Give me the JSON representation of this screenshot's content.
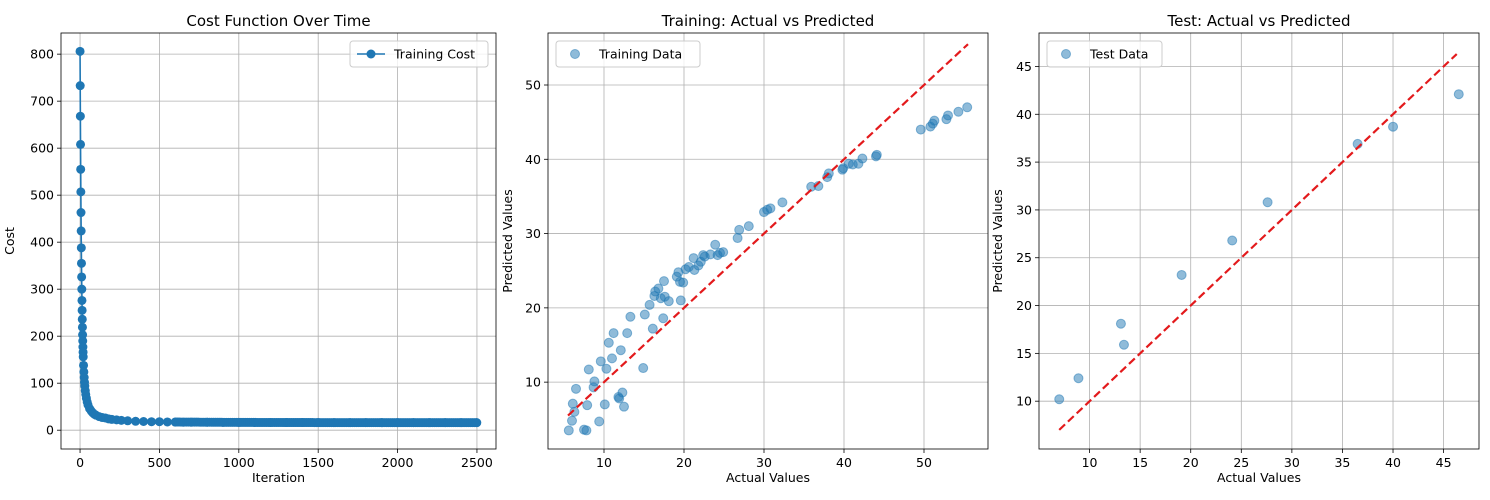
{
  "chart_data": [
    {
      "type": "line",
      "title": "Cost Function Over Time",
      "xlabel": "Iteration",
      "ylabel": "Cost",
      "xlim": [
        -120,
        2620
      ],
      "ylim": [
        -40,
        845
      ],
      "xticks": [
        0,
        500,
        1000,
        1500,
        2000,
        2500
      ],
      "yticks": [
        0,
        100,
        200,
        300,
        400,
        500,
        600,
        700,
        800
      ],
      "grid": true,
      "legend": "top-right",
      "color": "#1f77b4",
      "series": [
        {
          "name": "Training Cost",
          "x": [
            0,
            1,
            2,
            3,
            4,
            5,
            6,
            7,
            8,
            9,
            10,
            11,
            12,
            13,
            14,
            15,
            16,
            17,
            18,
            19,
            20,
            22,
            24,
            26,
            28,
            30,
            33,
            36,
            40,
            45,
            50,
            60,
            70,
            80,
            90,
            100,
            120,
            140,
            160,
            180,
            200,
            230,
            260,
            300,
            350,
            400,
            450,
            500,
            550,
            600,
            650,
            700,
            800,
            900,
            1000,
            1100,
            1200,
            1300,
            1400,
            1500,
            1600,
            1700,
            1800,
            1900,
            2000,
            2100,
            2200,
            2300,
            2400,
            2499
          ],
          "y": [
            806,
            733,
            668,
            608,
            555,
            507,
            463,
            424,
            388,
            355,
            326,
            300,
            276,
            255,
            236,
            219,
            203,
            190,
            177,
            166,
            156,
            138,
            124,
            112,
            102,
            94,
            84,
            76,
            68,
            60,
            54,
            46,
            41,
            37,
            34,
            32,
            29,
            27,
            26,
            24,
            23,
            22,
            21,
            20,
            19,
            18.5,
            18,
            18,
            17.5,
            17.2,
            17,
            16.9,
            16.8,
            16.7,
            16.6,
            16.5,
            16.4,
            16.4,
            16.3,
            16.3,
            16.2,
            16.2,
            16.2,
            16.1,
            16.1,
            16.1,
            16,
            16,
            16,
            16
          ]
        }
      ]
    },
    {
      "type": "scatter",
      "title": "Training: Actual vs Predicted",
      "xlabel": "Actual Values",
      "ylabel": "Predicted Values",
      "xlim": [
        3.0,
        58.0
      ],
      "ylim": [
        1.0,
        57.0
      ],
      "xticks": [
        10,
        20,
        30,
        40,
        50
      ],
      "yticks": [
        10,
        20,
        30,
        40,
        50
      ],
      "grid": true,
      "legend": "top-left",
      "color": "#1f77b4",
      "reference_line": {
        "x": [
          5.5,
          55.5
        ],
        "y": [
          5.5,
          55.5
        ],
        "color": "#e31a1c",
        "style": "dashed"
      },
      "series": [
        {
          "name": "Training Data",
          "points": [
            [
              5.6,
              3.5
            ],
            [
              6.0,
              4.8
            ],
            [
              6.1,
              7.1
            ],
            [
              6.3,
              6.0
            ],
            [
              6.5,
              9.1
            ],
            [
              7.5,
              3.6
            ],
            [
              7.8,
              3.5
            ],
            [
              7.9,
              6.9
            ],
            [
              8.1,
              11.7
            ],
            [
              8.7,
              9.3
            ],
            [
              8.8,
              10.1
            ],
            [
              9.4,
              4.7
            ],
            [
              9.6,
              12.8
            ],
            [
              10.1,
              7.0
            ],
            [
              10.3,
              11.8
            ],
            [
              10.6,
              15.3
            ],
            [
              11.0,
              13.2
            ],
            [
              11.2,
              16.6
            ],
            [
              11.8,
              8.0
            ],
            [
              11.9,
              7.8
            ],
            [
              12.1,
              14.3
            ],
            [
              12.3,
              8.6
            ],
            [
              12.5,
              6.7
            ],
            [
              12.9,
              16.6
            ],
            [
              13.3,
              18.8
            ],
            [
              14.9,
              11.9
            ],
            [
              15.1,
              19.1
            ],
            [
              15.7,
              20.4
            ],
            [
              16.1,
              17.2
            ],
            [
              16.3,
              21.6
            ],
            [
              16.4,
              22.2
            ],
            [
              16.8,
              22.6
            ],
            [
              17.1,
              21.3
            ],
            [
              17.4,
              18.6
            ],
            [
              17.5,
              23.6
            ],
            [
              17.6,
              21.5
            ],
            [
              18.1,
              20.9
            ],
            [
              19.1,
              24.2
            ],
            [
              19.3,
              24.8
            ],
            [
              19.5,
              23.5
            ],
            [
              19.6,
              21.0
            ],
            [
              19.9,
              23.4
            ],
            [
              20.2,
              25.2
            ],
            [
              20.6,
              25.5
            ],
            [
              21.2,
              26.7
            ],
            [
              21.3,
              25.1
            ],
            [
              21.8,
              25.7
            ],
            [
              22.1,
              26.2
            ],
            [
              22.4,
              27.1
            ],
            [
              22.6,
              26.9
            ],
            [
              23.3,
              27.2
            ],
            [
              23.9,
              28.5
            ],
            [
              24.2,
              27.1
            ],
            [
              24.5,
              27.4
            ],
            [
              24.9,
              27.5
            ],
            [
              26.7,
              29.4
            ],
            [
              26.9,
              30.5
            ],
            [
              28.1,
              31.0
            ],
            [
              30.0,
              32.9
            ],
            [
              30.4,
              33.2
            ],
            [
              30.8,
              33.4
            ],
            [
              32.3,
              34.2
            ],
            [
              35.9,
              36.3
            ],
            [
              36.8,
              36.4
            ],
            [
              37.9,
              37.6
            ],
            [
              38.1,
              38.1
            ],
            [
              39.8,
              38.6
            ],
            [
              39.9,
              38.8
            ],
            [
              40.6,
              39.4
            ],
            [
              41.1,
              39.3
            ],
            [
              41.8,
              39.4
            ],
            [
              42.3,
              40.1
            ],
            [
              44.0,
              40.4
            ],
            [
              44.1,
              40.6
            ],
            [
              49.6,
              44.0
            ],
            [
              50.8,
              44.4
            ],
            [
              51.1,
              44.8
            ],
            [
              51.3,
              45.2
            ],
            [
              52.8,
              45.4
            ],
            [
              53.0,
              45.9
            ],
            [
              54.3,
              46.4
            ],
            [
              55.4,
              47.0
            ]
          ]
        }
      ]
    },
    {
      "type": "scatter",
      "title": "Test: Actual vs Predicted",
      "xlabel": "Actual Values",
      "ylabel": "Predicted Values",
      "xlim": [
        5.0,
        48.5
      ],
      "ylim": [
        5.0,
        48.5
      ],
      "xticks": [
        10,
        15,
        20,
        25,
        30,
        35,
        40,
        45
      ],
      "yticks": [
        10,
        15,
        20,
        25,
        30,
        35,
        40,
        45
      ],
      "grid": true,
      "legend": "top-left",
      "color": "#1f77b4",
      "reference_line": {
        "x": [
          7.0,
          46.3
        ],
        "y": [
          7.0,
          46.3
        ],
        "color": "#e31a1c",
        "style": "dashed"
      },
      "series": [
        {
          "name": "Test Data",
          "points": [
            [
              7.0,
              10.2
            ],
            [
              8.9,
              12.4
            ],
            [
              13.1,
              18.1
            ],
            [
              13.4,
              15.9
            ],
            [
              19.1,
              23.2
            ],
            [
              24.1,
              26.8
            ],
            [
              27.6,
              30.8
            ],
            [
              36.5,
              36.9
            ],
            [
              40.0,
              38.7
            ],
            [
              46.5,
              42.1
            ]
          ]
        }
      ]
    }
  ]
}
